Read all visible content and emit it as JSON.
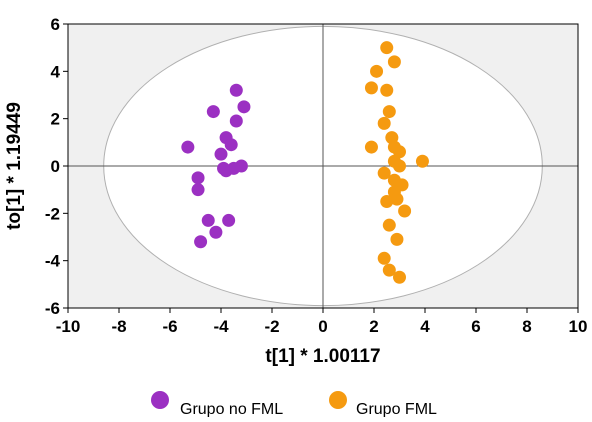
{
  "chart_data": {
    "type": "scatter",
    "title": "",
    "xlabel": "t[1] * 1.00117",
    "ylabel": "to[1] * 1.19449",
    "xlim": [
      -10,
      10
    ],
    "ylim": [
      -6,
      6
    ],
    "x_ticks": [
      -10,
      -8,
      -6,
      -4,
      -2,
      0,
      2,
      4,
      6,
      8,
      10
    ],
    "y_ticks": [
      -6,
      -4,
      -2,
      0,
      2,
      4,
      6
    ],
    "x_tick_labels": [
      "-10",
      "-8",
      "-6",
      "-4",
      "-2",
      "0",
      "2",
      "4",
      "6",
      "8",
      "10"
    ],
    "y_tick_labels": [
      "-6",
      "-4",
      "-2",
      "0",
      "2",
      "4",
      "6"
    ],
    "grid": false,
    "zero_lines": true,
    "confidence_ellipse": {
      "center": [
        0,
        0
      ],
      "x_radius": 8.6,
      "y_radius": 5.9
    },
    "legend_position": "bottom",
    "series": [
      {
        "name": "Grupo no FML",
        "color": "#9b30c2",
        "points": [
          [
            -3.4,
            3.2
          ],
          [
            -4.3,
            2.3
          ],
          [
            -3.1,
            2.5
          ],
          [
            -3.4,
            1.9
          ],
          [
            -3.8,
            1.2
          ],
          [
            -3.6,
            0.9
          ],
          [
            -5.3,
            0.8
          ],
          [
            -4.0,
            0.5
          ],
          [
            -3.2,
            0.0
          ],
          [
            -3.5,
            -0.1
          ],
          [
            -3.8,
            -0.2
          ],
          [
            -3.9,
            -0.1
          ],
          [
            -4.9,
            -0.5
          ],
          [
            -4.9,
            -1.0
          ],
          [
            -4.5,
            -2.3
          ],
          [
            -3.7,
            -2.3
          ],
          [
            -4.2,
            -2.8
          ],
          [
            -4.8,
            -3.2
          ]
        ]
      },
      {
        "name": "Grupo FML",
        "color": "#f59a10",
        "points": [
          [
            2.5,
            5.0
          ],
          [
            2.8,
            4.4
          ],
          [
            2.1,
            4.0
          ],
          [
            1.9,
            3.3
          ],
          [
            2.5,
            3.2
          ],
          [
            2.6,
            2.3
          ],
          [
            2.4,
            1.8
          ],
          [
            2.7,
            1.2
          ],
          [
            1.9,
            0.8
          ],
          [
            2.8,
            0.8
          ],
          [
            3.0,
            0.6
          ],
          [
            2.8,
            0.2
          ],
          [
            3.0,
            0.0
          ],
          [
            3.9,
            0.2
          ],
          [
            2.4,
            -0.3
          ],
          [
            2.8,
            -0.6
          ],
          [
            3.1,
            -0.8
          ],
          [
            2.8,
            -1.1
          ],
          [
            2.9,
            -1.4
          ],
          [
            2.5,
            -1.5
          ],
          [
            3.2,
            -1.9
          ],
          [
            2.6,
            -2.5
          ],
          [
            2.9,
            -3.1
          ],
          [
            2.4,
            -3.9
          ],
          [
            2.6,
            -4.4
          ],
          [
            3.0,
            -4.7
          ]
        ]
      }
    ]
  }
}
